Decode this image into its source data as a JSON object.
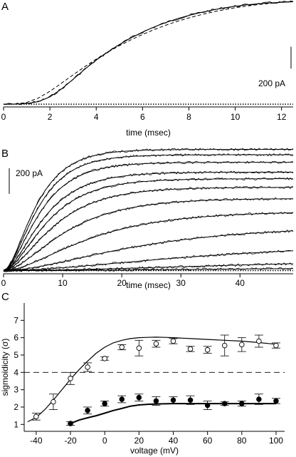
{
  "chart_data": [
    {
      "panel": "A",
      "type": "line",
      "xlabel": "time (msec)",
      "xlim": [
        0,
        12.5
      ],
      "xticks": [
        "0",
        "2",
        "4",
        "6",
        "8",
        "10",
        "12"
      ],
      "ylim": [
        -25,
        920
      ],
      "scale_bar": "200 pA",
      "scale_bar_value": 200,
      "baseline_style": "dotted",
      "series": [
        {
          "style": "noisy",
          "x": [
            0,
            0.5,
            1,
            1.5,
            2,
            2.5,
            3,
            3.5,
            4,
            4.5,
            5,
            5.5,
            6,
            6.5,
            7,
            7.5,
            8,
            8.5,
            9,
            9.5,
            10,
            10.5,
            11,
            11.5,
            12,
            12.5
          ],
          "y": [
            0,
            1,
            6,
            23,
            67,
            139,
            228,
            319,
            403,
            478,
            546,
            606,
            659,
            706,
            746,
            782,
            812,
            838,
            860,
            880,
            895,
            908,
            918,
            926,
            932,
            936
          ]
        },
        {
          "style": "fit",
          "x": [
            0,
            0.5,
            1,
            1.5,
            2,
            2.5,
            3,
            3.5,
            4,
            4.5,
            5,
            5.5,
            6,
            6.5,
            7,
            7.5,
            8,
            8.5,
            9,
            9.5,
            10,
            10.5,
            11,
            11.5,
            12,
            12.5
          ],
          "y": [
            0,
            1,
            6,
            23,
            67,
            139,
            228,
            319,
            403,
            478,
            546,
            606,
            659,
            706,
            746,
            782,
            812,
            838,
            860,
            880,
            895,
            908,
            918,
            926,
            932,
            936
          ]
        },
        {
          "style": "dashed",
          "x": [
            0,
            0.5,
            1,
            1.5,
            2,
            2.5,
            3,
            3.5,
            4,
            4.5,
            5,
            5.5,
            6,
            6.5,
            7,
            7.5,
            8,
            8.5,
            9,
            9.5,
            10,
            10.5,
            11,
            11.5,
            12,
            12.5
          ],
          "y": [
            0,
            2,
            16,
            56,
            118,
            192,
            268,
            342,
            412,
            476,
            535,
            589,
            638,
            682,
            722,
            758,
            789,
            817,
            842,
            863,
            882,
            898,
            911,
            922,
            931,
            938
          ]
        }
      ]
    },
    {
      "panel": "B",
      "type": "line",
      "xlabel": "time (msec)",
      "xlim": [
        0,
        49
      ],
      "xticks": [
        "0",
        "10",
        "20",
        "30",
        "40"
      ],
      "ylim": [
        -25,
        1000
      ],
      "scale_bar": "200 pA",
      "scale_bar_value": 200,
      "baseline_style": "dotted",
      "traces": [
        {
          "amplitude": 947,
          "tau": 4.2
        },
        {
          "amplitude": 905,
          "tau": 4.4
        },
        {
          "amplitude": 846,
          "tau": 4.7
        },
        {
          "amplitude": 769,
          "tau": 5.2
        },
        {
          "amplitude": 718,
          "tau": 5.7
        },
        {
          "amplitude": 651,
          "tau": 6.5
        },
        {
          "amplitude": 564,
          "tau": 8.0
        },
        {
          "amplitude": 462,
          "tau": 11.0
        },
        {
          "amplitude": 348,
          "tau": 17.0
        },
        {
          "amplitude": 215,
          "tau": 26.0
        },
        {
          "amplitude": 108,
          "tau": 40.0
        },
        {
          "amplitude": 40,
          "tau": 50.0
        }
      ]
    },
    {
      "panel": "C",
      "type": "scatter",
      "xlabel": "voltage (mV)",
      "ylabel": "sigmoidicity (σ)",
      "xlim": [
        -47,
        105
      ],
      "ylim": [
        0.6,
        8.0
      ],
      "xticks": [
        "-40",
        "-20",
        "0",
        "20",
        "40",
        "60",
        "80",
        "100"
      ],
      "yticks": [
        "1",
        "2",
        "3",
        "4",
        "5",
        "6",
        "7"
      ],
      "reference_line": {
        "y": 4,
        "style": "dashed"
      },
      "series": [
        {
          "marker": "open-circle",
          "x": [
            -40,
            -30,
            -20,
            -10,
            0,
            10,
            20,
            30,
            40,
            50,
            60,
            70,
            80,
            90,
            100
          ],
          "y": [
            1.45,
            2.3,
            3.65,
            4.3,
            4.8,
            5.45,
            5.4,
            5.65,
            5.8,
            5.35,
            5.3,
            5.55,
            5.6,
            5.8,
            5.55
          ],
          "err": [
            0.2,
            0.45,
            0.35,
            0.25,
            0.1,
            0.15,
            0.45,
            0.2,
            0.15,
            0.15,
            0.2,
            0.6,
            0.4,
            0.35,
            0.15
          ]
        },
        {
          "marker": "filled-circle",
          "x": [
            -20,
            -10,
            0,
            10,
            20,
            30,
            40,
            50,
            60,
            70,
            80,
            90,
            100
          ],
          "y": [
            1.05,
            1.8,
            2.2,
            2.45,
            2.55,
            2.35,
            2.4,
            2.4,
            2.1,
            2.2,
            2.2,
            2.45,
            2.35
          ],
          "err": [
            0.1,
            0.2,
            0.15,
            0.2,
            0.2,
            0.25,
            0.2,
            0.25,
            0.25,
            0.1,
            0.15,
            0.3,
            0.15
          ]
        }
      ],
      "curves": [
        {
          "style": "thin",
          "x": [
            -45,
            -40,
            -35,
            -30,
            -25,
            -20,
            -15,
            -10,
            -5,
            0,
            5,
            10,
            15,
            20,
            25,
            30,
            35,
            40,
            50,
            60,
            70,
            80,
            90,
            100
          ],
          "y": [
            1.15,
            1.4,
            1.85,
            2.4,
            3.0,
            3.6,
            4.15,
            4.65,
            5.1,
            5.45,
            5.7,
            5.85,
            5.95,
            6.0,
            6.02,
            6.03,
            6.02,
            6.0,
            5.95,
            5.9,
            5.85,
            5.8,
            5.72,
            5.62
          ]
        },
        {
          "style": "thick",
          "x": [
            -20,
            -15,
            -10,
            -5,
            0,
            5,
            10,
            15,
            20,
            25,
            30,
            40,
            50,
            60,
            70,
            80,
            90,
            100
          ],
          "y": [
            1.05,
            1.25,
            1.38,
            1.5,
            1.65,
            1.8,
            1.92,
            2.05,
            2.12,
            2.16,
            2.18,
            2.2,
            2.2,
            2.2,
            2.2,
            2.2,
            2.2,
            2.2
          ]
        }
      ]
    }
  ]
}
